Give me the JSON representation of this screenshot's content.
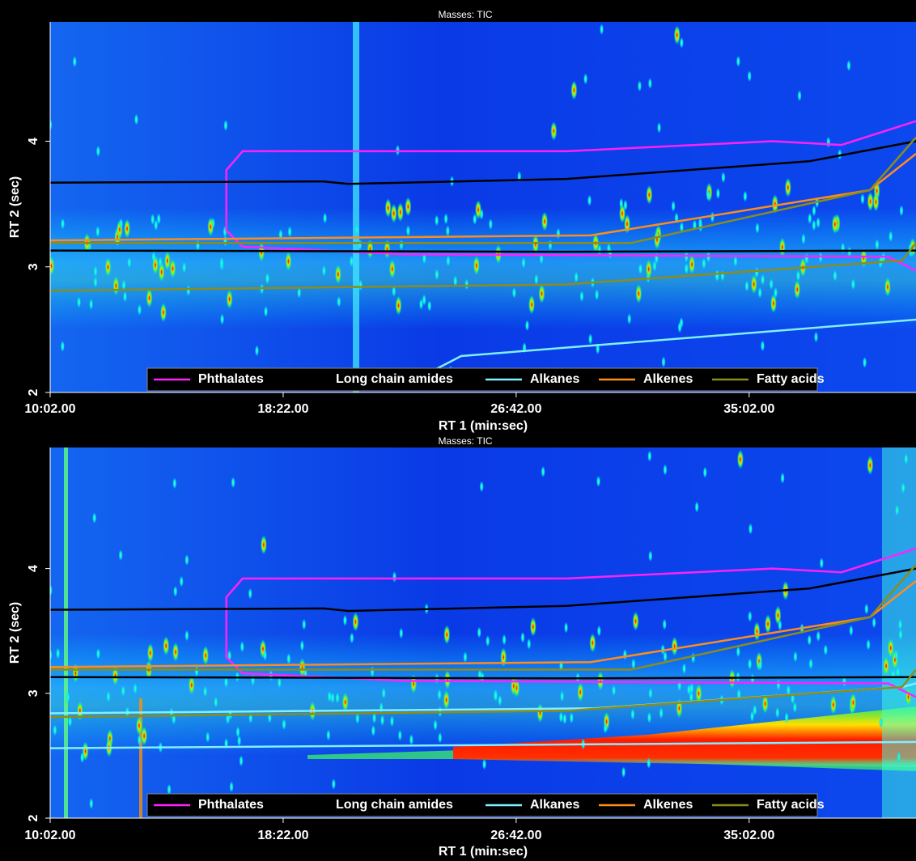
{
  "chart_data": [
    {
      "type": "contour",
      "title": "Masses: TIC",
      "x_label": "RT 1 (min:sec)",
      "y_label": "RT 2 (sec)",
      "xlim": [
        602,
        2460
      ],
      "ylim": [
        2,
        4.95
      ],
      "xticks": [
        {
          "value": 602,
          "label": "10:02.00"
        },
        {
          "value": 1102,
          "label": "18:22.00"
        },
        {
          "value": 1602,
          "label": "26:42.00"
        },
        {
          "value": 2102,
          "label": "35:02.00"
        }
      ],
      "yticks": [
        2,
        3,
        4
      ],
      "legend": "bottom",
      "hot_band": false,
      "series": [
        {
          "name": "Phthalates",
          "color": "#ff22ff",
          "x": [
            2460,
            2300,
            2152,
            1710,
            1015,
            980,
            980,
            1015,
            1362,
            2400,
            2460
          ],
          "values": [
            4.16,
            3.97,
            4.0,
            3.92,
            3.92,
            3.77,
            3.29,
            3.16,
            3.1,
            3.08,
            2.97
          ]
        },
        {
          "name": "Long chain amides",
          "color": "#000000",
          "x": [
            602,
            1189,
            1241,
            1710,
            2231,
            2460,
            null,
            602,
            1710,
            2460
          ],
          "values": [
            3.67,
            3.68,
            3.66,
            3.7,
            3.84,
            4.0,
            null,
            3.13,
            3.12,
            3.13
          ]
        },
        {
          "name": "Alkanes",
          "color": "#80f0ff",
          "x": [
            1432,
            1484,
            2460
          ],
          "values": [
            2.19,
            2.29,
            2.58
          ]
        },
        {
          "name": "Alkenes",
          "color": "#ff8c1a",
          "x": [
            602,
            1762,
            2361,
            2460
          ],
          "values": [
            3.21,
            3.25,
            3.61,
            3.9
          ]
        },
        {
          "name": "Fatty acids",
          "color": "#8c8c1a",
          "x": [
            602,
            1849,
            2361,
            2460,
            null,
            602,
            1710,
            2430,
            2460
          ],
          "values": [
            3.19,
            3.19,
            3.61,
            4.03,
            null,
            2.81,
            2.86,
            3.05,
            3.19
          ]
        }
      ]
    },
    {
      "type": "contour",
      "title": "Masses: TIC",
      "x_label": "RT 1 (min:sec)",
      "y_label": "RT 2 (sec)",
      "xlim": [
        602,
        2460
      ],
      "ylim": [
        2,
        4.97
      ],
      "xticks": [
        {
          "value": 602,
          "label": "10:02.00"
        },
        {
          "value": 1102,
          "label": "18:22.00"
        },
        {
          "value": 1602,
          "label": "26:42.00"
        },
        {
          "value": 2102,
          "label": "35:02.00"
        }
      ],
      "yticks": [
        2,
        3,
        4
      ],
      "legend": "bottom",
      "hot_band": true,
      "series": [
        {
          "name": "Phthalates",
          "color": "#ff22ff",
          "x": [
            2460,
            2300,
            2152,
            1710,
            1015,
            980,
            980,
            1015,
            1362,
            2400,
            2460
          ],
          "values": [
            4.16,
            3.97,
            4.0,
            3.92,
            3.92,
            3.77,
            3.29,
            3.16,
            3.1,
            3.08,
            2.97
          ]
        },
        {
          "name": "Long chain amides",
          "color": "#000000",
          "x": [
            602,
            1189,
            1241,
            1710,
            2231,
            2460,
            null,
            602,
            1710,
            2460
          ],
          "values": [
            3.67,
            3.68,
            3.66,
            3.7,
            3.84,
            4.0,
            null,
            3.13,
            3.12,
            3.13
          ]
        },
        {
          "name": "Alkanes",
          "color": "#80f0ff",
          "x": [
            602,
            1771,
            2430,
            2460,
            null,
            602,
            2460
          ],
          "values": [
            2.84,
            2.88,
            3.05,
            3.08,
            null,
            2.56,
            2.61
          ]
        },
        {
          "name": "Alkenes",
          "color": "#ff8c1a",
          "x": [
            602,
            1762,
            2361,
            2460
          ],
          "values": [
            3.21,
            3.25,
            3.61,
            3.9
          ]
        },
        {
          "name": "Fatty acids",
          "color": "#8c8c1a",
          "x": [
            602,
            1849,
            2361,
            2460,
            null,
            602,
            1710,
            2430,
            2460
          ],
          "values": [
            3.19,
            3.19,
            3.61,
            4.03,
            null,
            2.81,
            2.86,
            3.05,
            3.19
          ]
        }
      ]
    }
  ]
}
